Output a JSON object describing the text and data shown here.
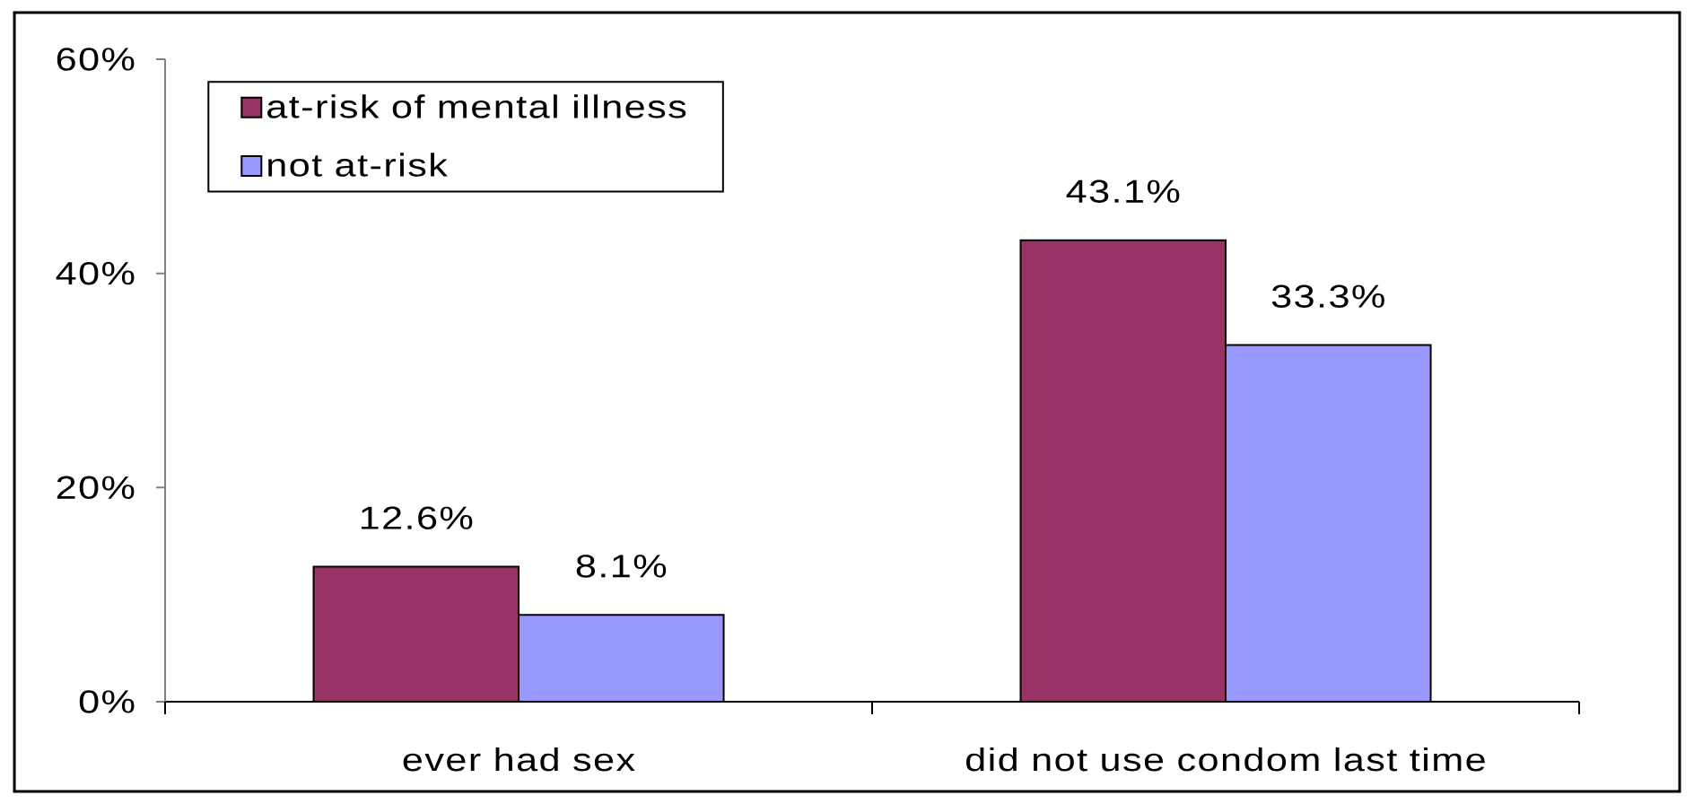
{
  "chart_data": {
    "type": "bar",
    "categories": [
      "ever had sex",
      "did not use condom last time"
    ],
    "series": [
      {
        "name": "at-risk of mental illness",
        "color": "#993366",
        "values": [
          12.6,
          43.1
        ],
        "value_labels": [
          "12.6%",
          "43.1%"
        ]
      },
      {
        "name": "not at-risk",
        "color": "#9999ff",
        "values": [
          8.1,
          33.3
        ],
        "value_labels": [
          "8.1%",
          "33.3%"
        ]
      }
    ],
    "ylim": [
      0,
      60
    ],
    "yticks": [
      {
        "value": 0,
        "label": "0%"
      },
      {
        "value": 20,
        "label": "20%"
      },
      {
        "value": 40,
        "label": "40%"
      },
      {
        "value": 60,
        "label": "60%"
      }
    ],
    "legend": "top left"
  }
}
